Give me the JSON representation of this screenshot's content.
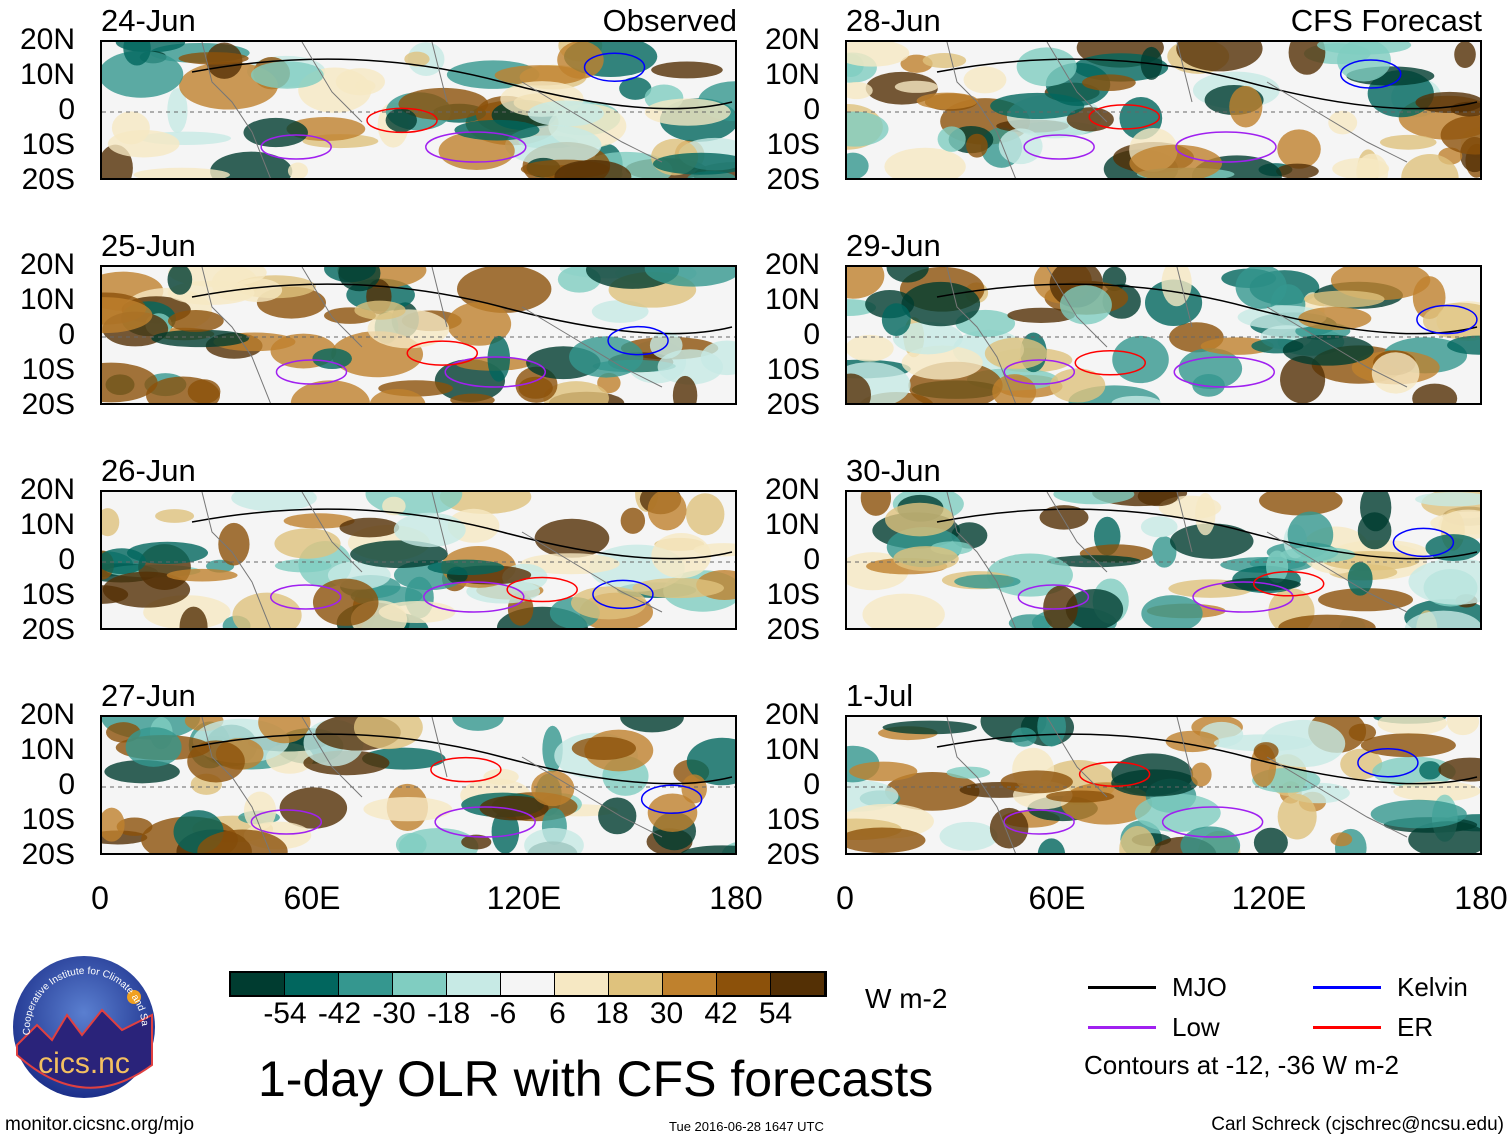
{
  "panels": [
    {
      "date": "24-Jun",
      "label": "Observed"
    },
    {
      "date": "25-Jun"
    },
    {
      "date": "26-Jun"
    },
    {
      "date": "27-Jun"
    },
    {
      "date": "28-Jun",
      "label": "CFS Forecast"
    },
    {
      "date": "29-Jun"
    },
    {
      "date": "30-Jun"
    },
    {
      "date": "1-Jul"
    }
  ],
  "lat_labels": [
    "20N",
    "10N",
    "0",
    "10S",
    "20S"
  ],
  "lon_labels": [
    "0",
    "60E",
    "120E",
    "180"
  ],
  "colorbar": {
    "colors": [
      "#003c30",
      "#01665e",
      "#35978f",
      "#80cdc1",
      "#c7eae5",
      "#f5f5f5",
      "#f6e8c3",
      "#dfc27d",
      "#bf812d",
      "#8c510a",
      "#543005"
    ],
    "ticks": [
      "-54",
      "-42",
      "-30",
      "-18",
      "-6",
      "6",
      "18",
      "30",
      "42",
      "54"
    ],
    "units": "W m-2"
  },
  "legend": {
    "items": [
      {
        "label": "MJO",
        "color": "#000000"
      },
      {
        "label": "Kelvin",
        "color": "#0000ff"
      },
      {
        "label": "Low",
        "color": "#a020f0"
      },
      {
        "label": "ER",
        "color": "#ff0000"
      }
    ],
    "note": "Contours at -12, -36 W m-2"
  },
  "title": "1-day OLR with CFS forecasts",
  "logo": {
    "text": "cics.nc",
    "arc": "Cooperative Institute for Climate and Satellites"
  },
  "footer": {
    "left": "monitor.cicsnc.org/mjo",
    "center": "Tue 2016-06-28 1647 UTC",
    "right": "Carl Schreck (cjschrec@ncsu.edu)"
  }
}
